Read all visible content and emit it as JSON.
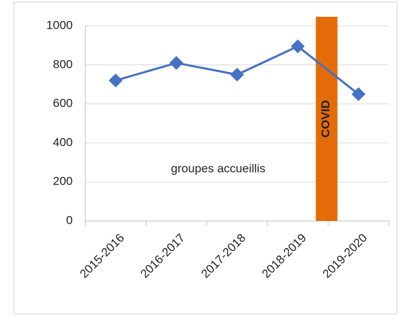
{
  "chart_data": {
    "type": "line",
    "categories": [
      "2015-2016",
      "2016-2017",
      "2017-2018",
      "2018-2019",
      "2019-2020"
    ],
    "series": [
      {
        "name": "groupes accueillis",
        "color": "#4472c4",
        "values": [
          720,
          810,
          750,
          895,
          650
        ]
      }
    ],
    "ylim": [
      0,
      1000
    ],
    "yticks": [
      0,
      200,
      400,
      600,
      800,
      1000
    ],
    "grid": true,
    "annotations": [
      {
        "text": "COVID",
        "color": "#e36c09"
      }
    ]
  }
}
